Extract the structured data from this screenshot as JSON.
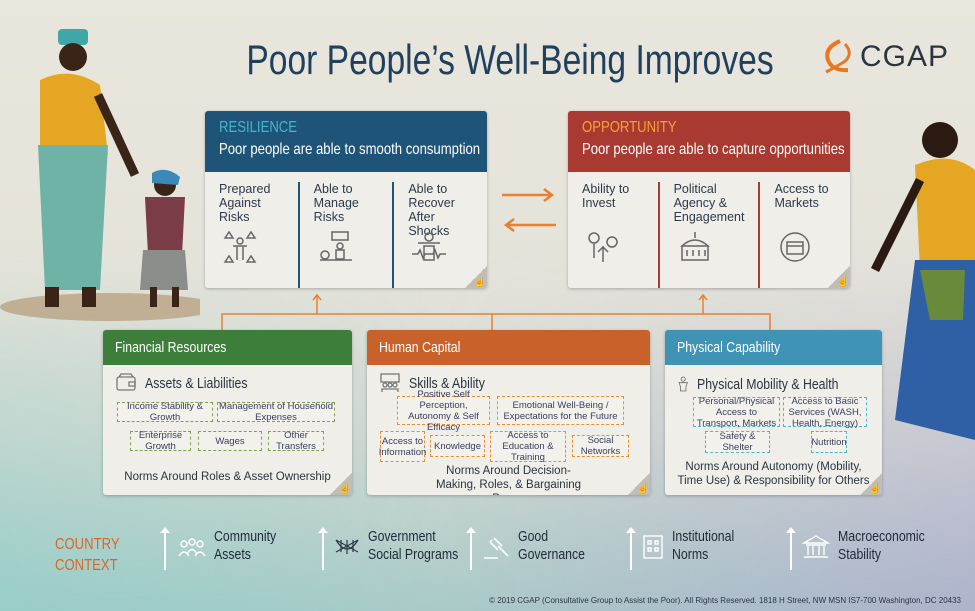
{
  "title": "Poor People’s Well-Being Improves",
  "logo": {
    "text": "CGAP",
    "color": "#e87722"
  },
  "colors": {
    "resilience": "#1f5479",
    "opportunity": "#a83a32",
    "financial": "#3d7f3a",
    "human": "#c9622a",
    "physical": "#3f93b5",
    "accent_orange": "#e8802f",
    "context": "#d9662b"
  },
  "resilience": {
    "label": "RESILIENCE",
    "subtitle": "Poor people are able to smooth consumption",
    "items": [
      {
        "label": "Prepared Against Risks",
        "icon": "risk-shield-icon"
      },
      {
        "label": "Able to Manage Risks",
        "icon": "balance-lift-icon"
      },
      {
        "label": "Able to Recover After Shocks",
        "icon": "recovery-heartbeat-icon"
      }
    ]
  },
  "opportunity": {
    "label": "OPPORTUNITY",
    "subtitle": "Poor people are able to capture opportunities",
    "items": [
      {
        "label": "Ability to Invest",
        "icon": "growth-coins-icon"
      },
      {
        "label": "Political Agency & Engagement",
        "icon": "government-building-icon"
      },
      {
        "label": "Access to Markets",
        "icon": "market-stall-icon"
      }
    ]
  },
  "financial": {
    "title": "Financial Resources",
    "section": "Assets & Liabilities",
    "chips": [
      "Income Stability & Growth",
      "Management of Household Expenses",
      "Enterprise Growth",
      "Wages",
      "Other Transfers"
    ],
    "norms": "Norms Around Roles & Asset Ownership"
  },
  "human": {
    "title": "Human Capital",
    "section": "Skills & Ability",
    "chips": [
      "Positive Self Perception, Autonomy & Self Efficacy",
      "Emotional Well-Being / Expectations for the Future",
      "Access to Information",
      "Knowledge",
      "Access to Education & Training",
      "Social Networks"
    ],
    "norms": "Norms Around Decision-Making, Roles, & Bargaining  Power"
  },
  "physical": {
    "title": "Physical Capability",
    "section": "Physical Mobility & Health",
    "chips": [
      "Personal/Physical Access to Transport, Markets",
      "Access to Basic Services (WASH, Health, Energy)",
      "Safety & Shelter",
      "Nutrition"
    ],
    "norms": "Norms Around Autonomy (Mobility, Time Use) & Responsibility for Others"
  },
  "context": {
    "label_line1": "COUNTRY",
    "label_line2": "CONTEXT",
    "items": [
      {
        "line1": "Community",
        "line2": "Assets",
        "icon": "community-people-icon"
      },
      {
        "line1": "Government",
        "line2": "Social Programs",
        "icon": "safety-net-icon"
      },
      {
        "line1": "Good",
        "line2": "Governance",
        "icon": "gavel-icon"
      },
      {
        "line1": "Institutional",
        "line2": "Norms",
        "icon": "institution-building-icon"
      },
      {
        "line1": "Macroeconomic",
        "line2": "Stability",
        "icon": "bank-columns-icon"
      }
    ]
  },
  "footer": "© 2019 CGAP (Consultative Group to Assist the Poor). All Rights Reserved. 1818 H Street, NW MSN IS7-700 Washington, DC 20433"
}
